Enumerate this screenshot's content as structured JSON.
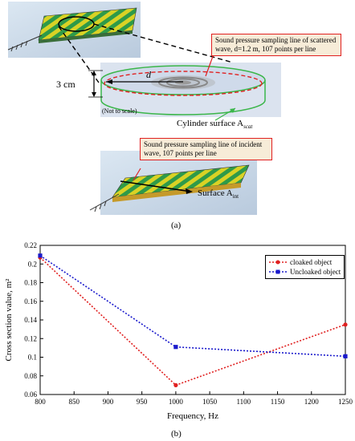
{
  "panel_a": {
    "callout_scattered": "Sound pressure sampling line of scattered wave, d=1.2 m, 107 points per line",
    "callout_incident": "Sound pressure sampling line of incident wave, 107 points per line",
    "height_label": "3 cm",
    "d_label": "d",
    "not_to_scale": "(Not to scale)",
    "cylinder_label": "Cylinder surface A",
    "cylinder_sub": "scat",
    "surface_label": "Surface A",
    "surface_sub": "int",
    "caption": "(a)"
  },
  "panel_b": {
    "caption": "(b)"
  },
  "chart_data": {
    "type": "line",
    "xlabel": "Frequency, Hz",
    "ylabel": "Cross section value, m²",
    "xlim": [
      800,
      1250
    ],
    "ylim": [
      0.06,
      0.22
    ],
    "xticks": [
      "800",
      "850",
      "900",
      "950",
      "1000",
      "1050",
      "1100",
      "1150",
      "1200",
      "1250"
    ],
    "yticks": [
      "0.06",
      "0.08",
      "0.1",
      "0.12",
      "0.14",
      "0.16",
      "0.18",
      "0.2",
      "0.22"
    ],
    "legend_position": "top-right",
    "grid": false,
    "series": [
      {
        "name": "cloaked object",
        "color": "#e02020",
        "marker": "circle",
        "x": [
          800,
          1000,
          1250
        ],
        "y": [
          0.207,
          0.07,
          0.135
        ]
      },
      {
        "name": "Uncloaked object",
        "color": "#1a1acc",
        "marker": "square",
        "x": [
          800,
          1000,
          1250
        ],
        "y": [
          0.209,
          0.111,
          0.101
        ]
      }
    ]
  }
}
